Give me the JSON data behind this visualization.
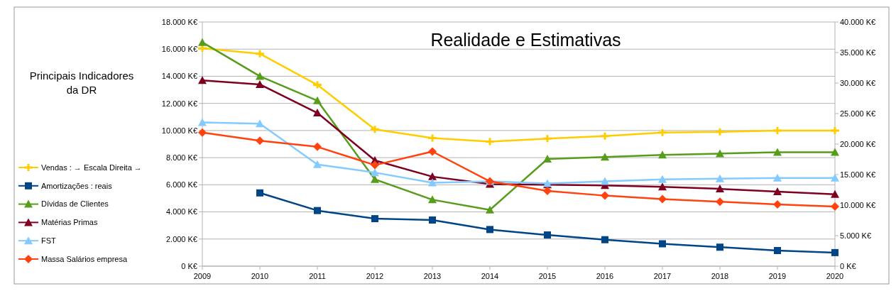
{
  "chart_data": {
    "type": "line",
    "title": "Realidade e Estimativas",
    "legend_title": "Principais Indicadores da DR",
    "legend": "left",
    "grid": "y",
    "x": [
      2009,
      2010,
      2011,
      2012,
      2013,
      2014,
      2015,
      2016,
      2017,
      2018,
      2019,
      2020
    ],
    "xlim": [
      2009,
      2020
    ],
    "xticks": [
      2009,
      2010,
      2011,
      2012,
      2013,
      2014,
      2015,
      2016,
      2017,
      2018,
      2019,
      2020
    ],
    "ylim": [
      0,
      18000
    ],
    "yticks": [
      {
        "value": 0,
        "label": "0 K€"
      },
      {
        "value": 2000,
        "label": "2.000 K€"
      },
      {
        "value": 4000,
        "label": "4.000 K€"
      },
      {
        "value": 6000,
        "label": "6.000 K€"
      },
      {
        "value": 8000,
        "label": "8.000 K€"
      },
      {
        "value": 10000,
        "label": "10.000 K€"
      },
      {
        "value": 12000,
        "label": "12.000 K€"
      },
      {
        "value": 14000,
        "label": "14.000 K€"
      },
      {
        "value": 16000,
        "label": "16.000 K€"
      },
      {
        "value": 18000,
        "label": "18.000 K€"
      }
    ],
    "y2lim": [
      0,
      40000
    ],
    "y2ticks": [
      {
        "value": 0,
        "label": "0 K€"
      },
      {
        "value": 5000,
        "label": "5.000 K€"
      },
      {
        "value": 10000,
        "label": "10.000 K€"
      },
      {
        "value": 15000,
        "label": "15.000 K€"
      },
      {
        "value": 20000,
        "label": "20.000 K€"
      },
      {
        "value": 25000,
        "label": "25.000 K€"
      },
      {
        "value": 30000,
        "label": "30.000 K€"
      },
      {
        "value": 35000,
        "label": "35.000 K€"
      },
      {
        "value": 40000,
        "label": "40.000 K€"
      }
    ],
    "series": [
      {
        "name": "Vendas : → Escala Direita →",
        "color": "#ffcc00",
        "axis": "y2",
        "marker": "cross",
        "values": [
          35700,
          34800,
          29700,
          22400,
          21000,
          20400,
          20900,
          21300,
          21900,
          22000,
          22200,
          22200
        ]
      },
      {
        "name": "Amortizações : reais",
        "color": "#004586",
        "marker": "square",
        "values": [
          null,
          5400,
          4100,
          3500,
          3400,
          2700,
          2300,
          1950,
          1650,
          1400,
          1150,
          1000
        ]
      },
      {
        "name": "Dívidas de Clientes",
        "color": "#579d1c",
        "marker": "triangle",
        "values": [
          16500,
          14000,
          12200,
          6400,
          4900,
          4150,
          7900,
          8050,
          8200,
          8300,
          8400,
          8400
        ]
      },
      {
        "name": "Matérias Primas",
        "color": "#7e0021",
        "marker": "triangle",
        "values": [
          13700,
          13400,
          11300,
          7800,
          6600,
          6050,
          6000,
          5950,
          5850,
          5700,
          5500,
          5300
        ]
      },
      {
        "name": "FST",
        "color": "#83caff",
        "marker": "triangle",
        "values": [
          10600,
          10500,
          7500,
          6900,
          6150,
          6250,
          6100,
          6250,
          6400,
          6450,
          6500,
          6500
        ]
      },
      {
        "name": "Massa Salários empresa",
        "color": "#ff420e",
        "marker": "diamond",
        "values": [
          9850,
          9250,
          8800,
          7450,
          8450,
          6250,
          5550,
          5200,
          4950,
          4750,
          4550,
          4400
        ]
      }
    ]
  }
}
